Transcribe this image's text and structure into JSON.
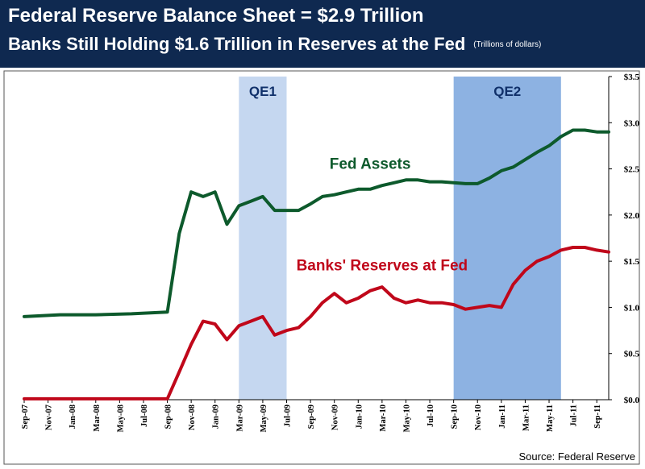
{
  "header": {
    "title": "Federal Reserve Balance Sheet = $2.9 Trillion",
    "subtitle": "Banks Still Holding $1.6 Trillion in Reserves at the Fed",
    "units": "(Trillions of dollars)"
  },
  "source": "Source:  Federal Reserve",
  "colors": {
    "header_bg": "#0f2950",
    "fed_assets": "#0d5a2c",
    "reserves": "#c0071a",
    "qe1_band": "#c5d7f0",
    "qe2_band": "#8db2e2",
    "band_label": "#10306a"
  },
  "chart_data": {
    "type": "line",
    "x_start": "2007-09",
    "x_end": "2011-10",
    "xticks": [
      "Sep-07",
      "Nov-07",
      "Jan-08",
      "Mar-08",
      "May-08",
      "Jul-08",
      "Sep-08",
      "Nov-08",
      "Jan-09",
      "Mar-09",
      "May-09",
      "Jul-09",
      "Sep-09",
      "Nov-09",
      "Jan-10",
      "Mar-10",
      "May-10",
      "Jul-10",
      "Sep-10",
      "Nov-10",
      "Jan-11",
      "Mar-11",
      "May-11",
      "Jul-11",
      "Sep-11"
    ],
    "yticks": [
      "$0.0",
      "$0.5",
      "$1.0",
      "$1.5",
      "$2.0",
      "$2.5",
      "$3.0",
      "$3.5"
    ],
    "ylim": [
      0,
      3.5
    ],
    "grid": false,
    "bands": [
      {
        "label": "QE1",
        "start": "2009-03",
        "end": "2009-07"
      },
      {
        "label": "QE2",
        "start": "2010-09",
        "end": "2011-06"
      }
    ],
    "series": [
      {
        "name": "Fed Assets",
        "x": [
          "2007-09",
          "2007-12",
          "2008-03",
          "2008-06",
          "2008-09",
          "2008-10",
          "2008-11",
          "2008-12",
          "2009-01",
          "2009-02",
          "2009-03",
          "2009-04",
          "2009-05",
          "2009-06",
          "2009-07",
          "2009-08",
          "2009-09",
          "2009-10",
          "2009-11",
          "2009-12",
          "2010-01",
          "2010-02",
          "2010-03",
          "2010-04",
          "2010-05",
          "2010-06",
          "2010-07",
          "2010-08",
          "2010-09",
          "2010-10",
          "2010-11",
          "2010-12",
          "2011-01",
          "2011-02",
          "2011-03",
          "2011-04",
          "2011-05",
          "2011-06",
          "2011-07",
          "2011-08",
          "2011-09",
          "2011-10"
        ],
        "values": [
          0.9,
          0.92,
          0.92,
          0.93,
          0.95,
          1.8,
          2.25,
          2.2,
          2.25,
          1.9,
          2.1,
          2.15,
          2.2,
          2.05,
          2.05,
          2.05,
          2.12,
          2.2,
          2.22,
          2.25,
          2.28,
          2.28,
          2.32,
          2.35,
          2.38,
          2.38,
          2.36,
          2.36,
          2.35,
          2.34,
          2.34,
          2.4,
          2.48,
          2.52,
          2.6,
          2.68,
          2.75,
          2.85,
          2.92,
          2.92,
          2.9,
          2.9
        ]
      },
      {
        "name": "Banks' Reserves at Fed",
        "x": [
          "2007-09",
          "2007-12",
          "2008-03",
          "2008-06",
          "2008-09",
          "2008-10",
          "2008-11",
          "2008-12",
          "2009-01",
          "2009-02",
          "2009-03",
          "2009-04",
          "2009-05",
          "2009-06",
          "2009-07",
          "2009-08",
          "2009-09",
          "2009-10",
          "2009-11",
          "2009-12",
          "2010-01",
          "2010-02",
          "2010-03",
          "2010-04",
          "2010-05",
          "2010-06",
          "2010-07",
          "2010-08",
          "2010-09",
          "2010-10",
          "2010-11",
          "2010-12",
          "2011-01",
          "2011-02",
          "2011-03",
          "2011-04",
          "2011-05",
          "2011-06",
          "2011-07",
          "2011-08",
          "2011-09",
          "2011-10"
        ],
        "values": [
          0.01,
          0.01,
          0.01,
          0.01,
          0.01,
          0.3,
          0.6,
          0.85,
          0.82,
          0.65,
          0.8,
          0.85,
          0.9,
          0.7,
          0.75,
          0.78,
          0.9,
          1.05,
          1.15,
          1.05,
          1.1,
          1.18,
          1.22,
          1.1,
          1.05,
          1.08,
          1.05,
          1.05,
          1.03,
          0.98,
          1.0,
          1.02,
          1.0,
          1.25,
          1.4,
          1.5,
          1.55,
          1.62,
          1.65,
          1.65,
          1.62,
          1.6
        ]
      }
    ],
    "annotations": [
      {
        "text": "Fed Assets",
        "x": "2010-02",
        "y": 2.5
      },
      {
        "text": "Banks' Reserves at Fed",
        "x": "2010-03",
        "y": 1.4
      }
    ]
  }
}
